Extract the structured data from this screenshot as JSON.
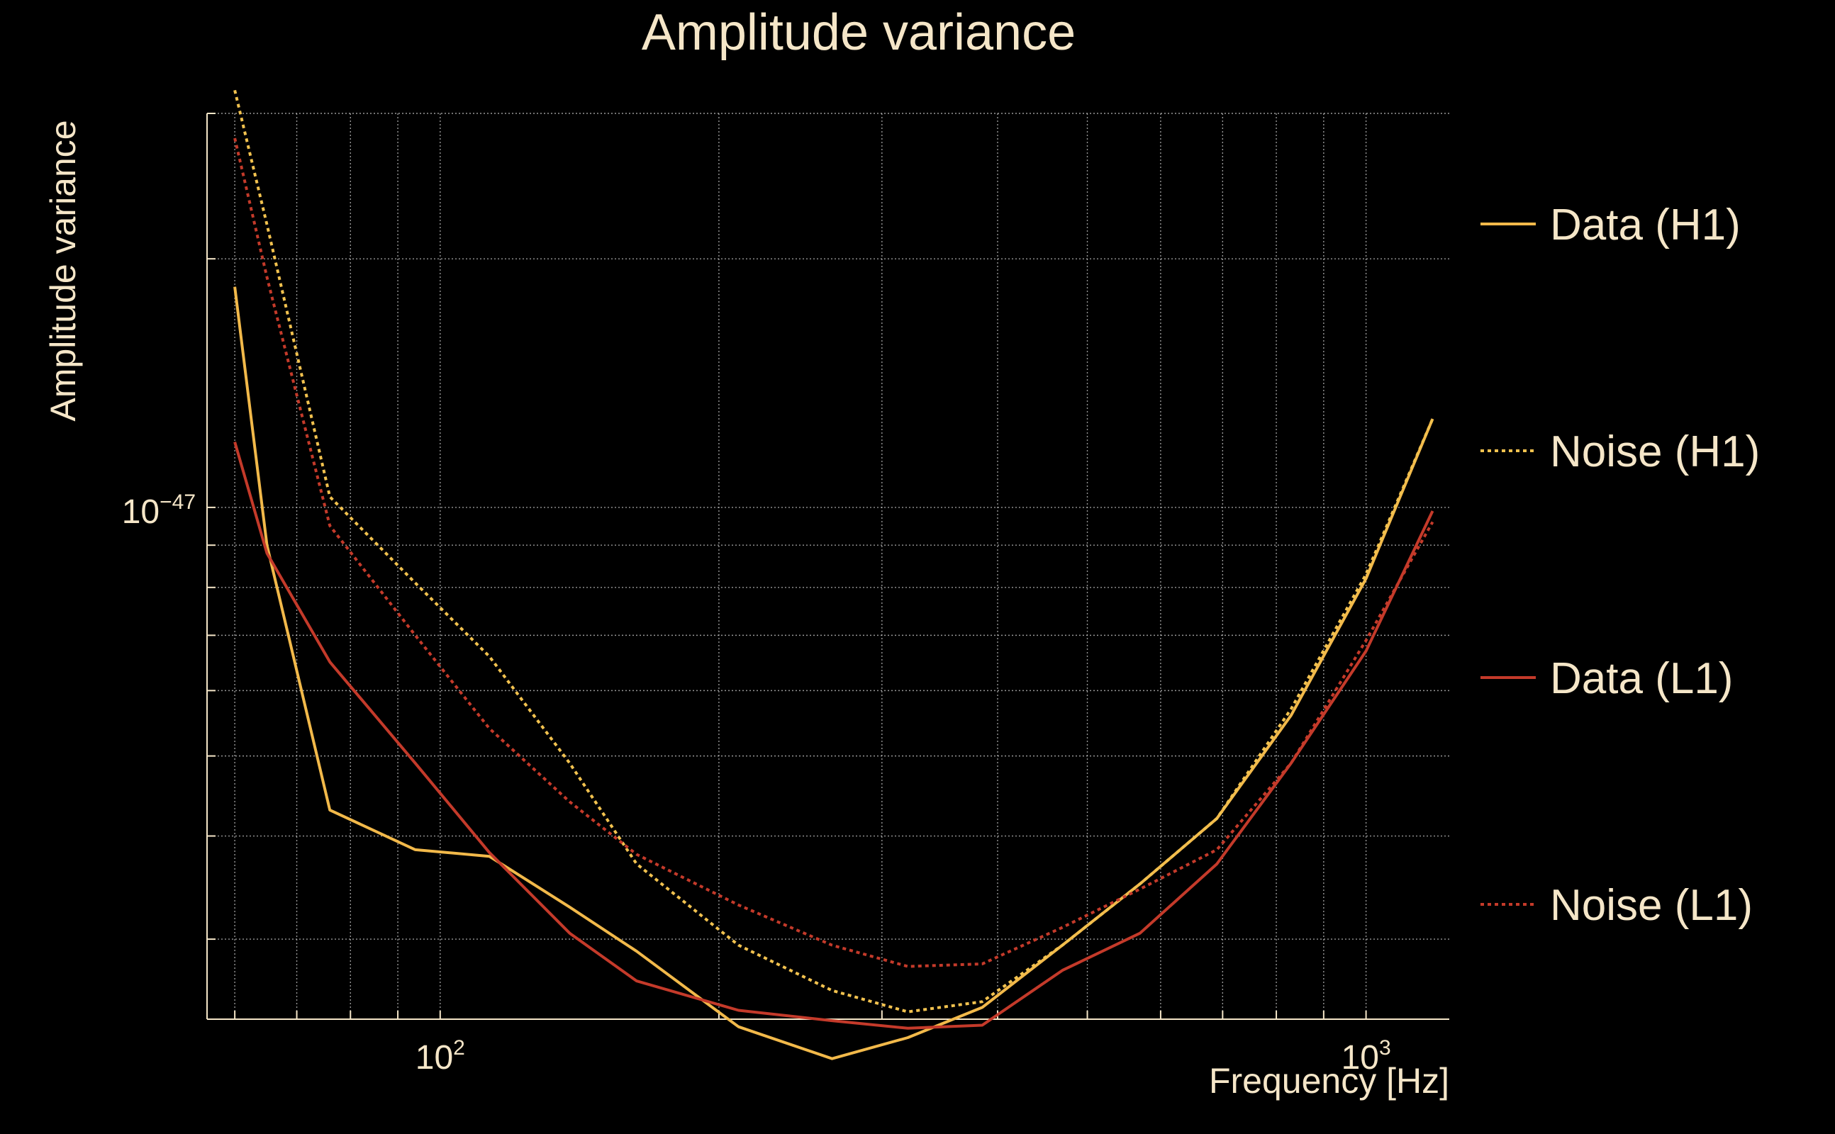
{
  "chart_data": {
    "type": "line",
    "title": "Amplitude variance",
    "xlabel": "Frequency [Hz]",
    "ylabel": "Amplitude variance",
    "x_scale": "log",
    "y_scale": "log",
    "xlim": [
      56,
      1230
    ],
    "ylim": [
      2.4e-48,
      3e-47
    ],
    "x_ticks": [
      {
        "base": "10",
        "exp": "2",
        "value": 100
      },
      {
        "base": "10",
        "exp": "3",
        "value": 1000
      }
    ],
    "y_ticks": [
      {
        "base": "10",
        "exp": "−47",
        "value": 1e-47
      }
    ],
    "grid": true,
    "legend_position": "right",
    "x": [
      60,
      65,
      76,
      94,
      113,
      138,
      163,
      210,
      265,
      320,
      385,
      470,
      570,
      690,
      830,
      1000,
      1180
    ],
    "series": [
      {
        "name": "Data (H1)",
        "color": "#f2b94a",
        "dash": "solid",
        "values": [
          1.85e-47,
          9e-48,
          4.3e-48,
          3.85e-48,
          3.78e-48,
          3.28e-48,
          2.9e-48,
          2.35e-48,
          2.15e-48,
          2.28e-48,
          2.48e-48,
          2.95e-48,
          3.5e-48,
          4.2e-48,
          5.6e-48,
          8.2e-48,
          1.28e-47
        ]
      },
      {
        "name": "Noise (H1)",
        "color": "#f2c24f",
        "dash": "dotted",
        "values": [
          3.2e-47,
          2.2e-47,
          1.03e-47,
          8.1e-48,
          6.6e-48,
          4.9e-48,
          3.7e-48,
          2.95e-48,
          2.6e-48,
          2.45e-48,
          2.52e-48,
          2.95e-48,
          3.5e-48,
          4.2e-48,
          5.7e-48,
          8.3e-48,
          1.28e-47
        ]
      },
      {
        "name": "Data (L1)",
        "color": "#c43a2a",
        "dash": "solid",
        "values": [
          1.2e-47,
          8.8e-48,
          6.5e-48,
          4.9e-48,
          3.82e-48,
          3.05e-48,
          2.67e-48,
          2.46e-48,
          2.39e-48,
          2.34e-48,
          2.36e-48,
          2.75e-48,
          3.05e-48,
          3.7e-48,
          4.9e-48,
          6.7e-48,
          9.9e-48
        ]
      },
      {
        "name": "Noise (L1)",
        "color": "#c43a2a",
        "dash": "dotted",
        "values": [
          2.8e-47,
          1.9e-47,
          9.5e-48,
          7e-48,
          5.4e-48,
          4.4e-48,
          3.8e-48,
          3.3e-48,
          2.95e-48,
          2.78e-48,
          2.8e-48,
          3.1e-48,
          3.45e-48,
          3.85e-48,
          4.9e-48,
          6.9e-48,
          9.6e-48
        ]
      }
    ]
  }
}
